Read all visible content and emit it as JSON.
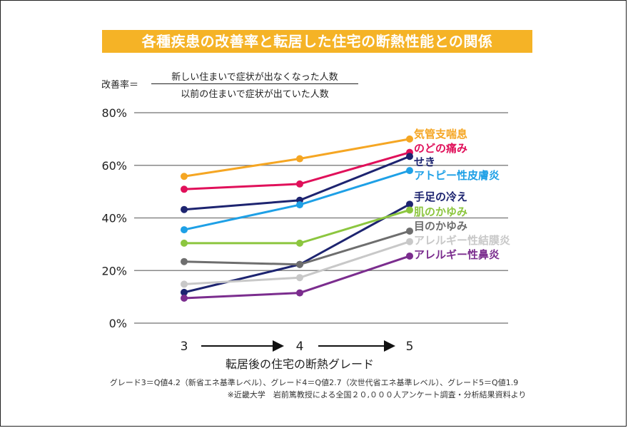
{
  "title": "各種疾患の改善率と転居した住宅の断熱性能との関係",
  "formula": {
    "prefix": "改善率＝",
    "numerator": "新しい住まいで症状が出なくなった人数",
    "denominator": "以前の住まいで症状が出ていた人数"
  },
  "footnotes": [
    "グレード3＝Q値4.2（新省エネ基準レベル）、グレード4＝Q値2.7（次世代省エネ基準レベル）、グレード5＝Q値1.9",
    "※近畿大学　岩前篤教授による全国２０,０００人アンケート調査・分析結果資料より"
  ],
  "chart_data": {
    "type": "line",
    "x": [
      "3",
      "4",
      "5"
    ],
    "xlabel": "転居後の住宅の断熱グレード",
    "ylabel": "",
    "ylim": [
      0,
      80
    ],
    "yticks": [
      "0%",
      "20%",
      "40%",
      "60%",
      "80%"
    ],
    "yticks_values": [
      0,
      20,
      40,
      60,
      80
    ],
    "grid": true,
    "legend": "right, labels at line ends",
    "series": [
      {
        "name": "気管支喘息",
        "color": "#f5a623",
        "values": [
          55.8,
          62.5,
          70.0
        ]
      },
      {
        "name": "のどの痛み",
        "color": "#e0105a",
        "values": [
          50.9,
          52.9,
          64.9
        ]
      },
      {
        "name": "せき",
        "color": "#1d2470",
        "values": [
          43.2,
          46.7,
          63.4
        ]
      },
      {
        "name": "アトピー性皮膚炎",
        "color": "#1ea0e6",
        "values": [
          35.5,
          45.0,
          58.0
        ]
      },
      {
        "name": "手足の冷え",
        "color": "#1d2470",
        "values": [
          11.7,
          22.3,
          45.2
        ]
      },
      {
        "name": "肌のかゆみ",
        "color": "#8cc63f",
        "values": [
          30.4,
          30.4,
          43.0
        ]
      },
      {
        "name": "目のかゆみ",
        "color": "#6e6e6e",
        "values": [
          23.4,
          22.3,
          35.0
        ]
      },
      {
        "name": "アレルギー性結膜炎",
        "color": "#c8c8c8",
        "values": [
          14.8,
          17.3,
          31.0
        ]
      },
      {
        "name": "アレルギー性鼻炎",
        "color": "#7b2d8e",
        "values": [
          9.5,
          11.5,
          25.5
        ]
      }
    ]
  }
}
